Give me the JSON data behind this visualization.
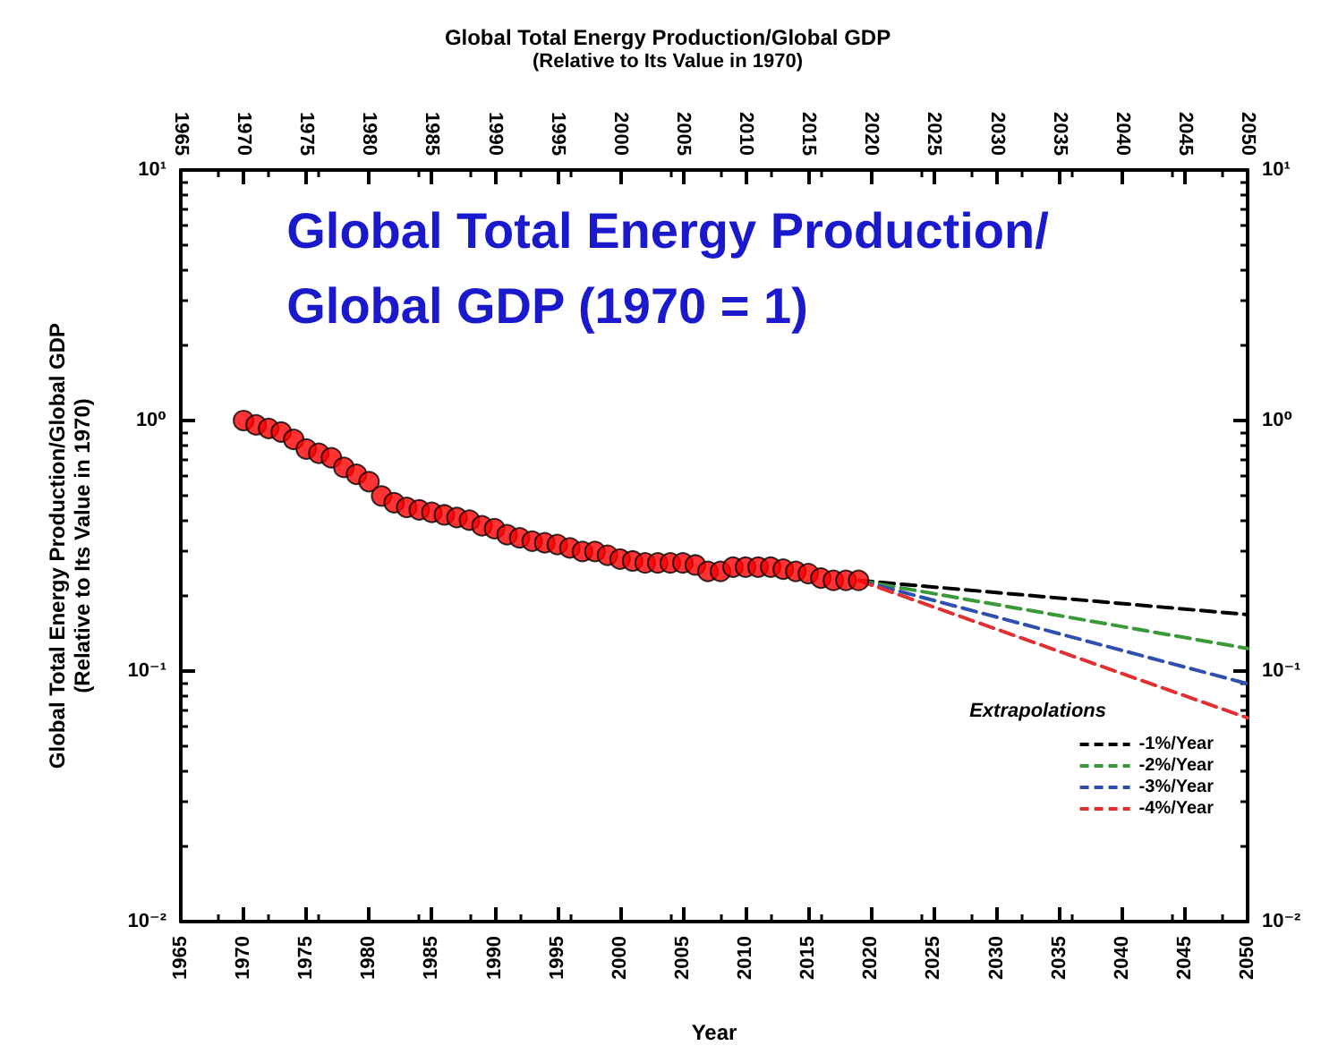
{
  "chart_data": {
    "type": "line",
    "title": "Global Total Energy Production/Global GDP\n(Relative to Its Value in 1970)",
    "xlabel": "Year",
    "ylabel": "Global Total Energy Production/Global GDP\n(Relative to Its Value in 1970)",
    "annotations": [
      "Global Total Energy Production/\nGlobal GDP (1970 = 1)"
    ],
    "legend_title": "Extrapolations",
    "legend": "bottom right",
    "log": "y",
    "grid": false,
    "xlim": [
      1965,
      2050
    ],
    "xticks": [
      1965,
      1970,
      1975,
      1980,
      1985,
      1990,
      1995,
      2000,
      2005,
      2010,
      2015,
      2020,
      2025,
      2030,
      2035,
      2040,
      2045,
      2050
    ],
    "x2lim": [
      1965,
      2050
    ],
    "x2ticks": [
      1965,
      1970,
      1975,
      1980,
      1985,
      1990,
      1995,
      2000,
      2005,
      2010,
      2015,
      2020,
      2025,
      2030,
      2035,
      2040,
      2045,
      2050
    ],
    "ylim": [
      0.01,
      10
    ],
    "yticks": [
      {
        "value": 0.01,
        "label": "10⁻²"
      },
      {
        "value": 0.1,
        "label": "10⁻¹"
      },
      {
        "value": 1,
        "label": "10⁰"
      },
      {
        "value": 10,
        "label": "10¹"
      }
    ],
    "series": [
      {
        "type": "scatter",
        "color": "#ff0000",
        "marker": "circle",
        "x": [
          1970,
          1971,
          1972,
          1973,
          1974,
          1975,
          1976,
          1977,
          1978,
          1979,
          1980,
          1981,
          1982,
          1983,
          1984,
          1985,
          1986,
          1987,
          1988,
          1989,
          1990,
          1991,
          1992,
          1993,
          1994,
          1995,
          1996,
          1997,
          1998,
          1999,
          2000,
          2001,
          2002,
          2003,
          2004,
          2005,
          2006,
          2007,
          2008,
          2009,
          2010,
          2011,
          2012,
          2013,
          2014,
          2015,
          2016,
          2017,
          2018,
          2019
        ],
        "values": [
          1.0,
          0.96,
          0.93,
          0.9,
          0.84,
          0.77,
          0.74,
          0.71,
          0.65,
          0.61,
          0.57,
          0.5,
          0.47,
          0.45,
          0.44,
          0.43,
          0.42,
          0.41,
          0.4,
          0.38,
          0.37,
          0.35,
          0.34,
          0.33,
          0.325,
          0.32,
          0.31,
          0.3,
          0.3,
          0.29,
          0.28,
          0.275,
          0.27,
          0.27,
          0.27,
          0.27,
          0.265,
          0.25,
          0.25,
          0.26,
          0.26,
          0.26,
          0.26,
          0.255,
          0.25,
          0.245,
          0.235,
          0.23,
          0.23,
          0.23
        ]
      },
      {
        "name": "-1%/Year",
        "color": "#000000",
        "marker": "none",
        "line_style": "dashed",
        "x": [
          2019,
          2050
        ],
        "values": [
          0.23,
          0.168
        ]
      },
      {
        "name": "-2%/Year",
        "color": "#3a9a3a",
        "marker": "none",
        "line_style": "dashed",
        "x": [
          2019,
          2050
        ],
        "values": [
          0.23,
          0.123
        ]
      },
      {
        "name": "-3%/Year",
        "color": "#3050b0",
        "marker": "none",
        "line_style": "dashed",
        "x": [
          2019,
          2050
        ],
        "values": [
          0.23,
          0.089
        ]
      },
      {
        "name": "-4%/Year",
        "color": "#e03030",
        "marker": "none",
        "line_style": "dashed",
        "x": [
          2019,
          2050
        ],
        "values": [
          0.23,
          0.065
        ]
      }
    ]
  }
}
